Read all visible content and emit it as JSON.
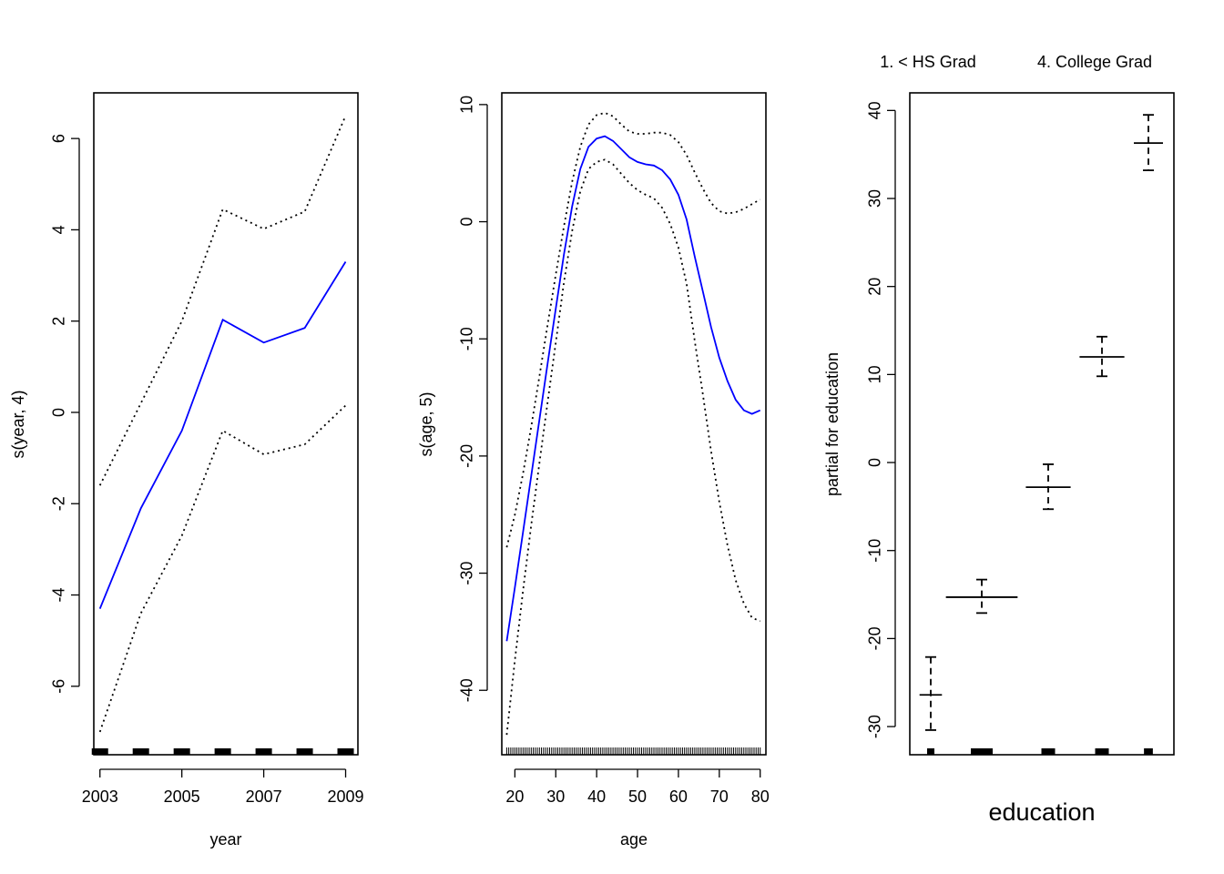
{
  "chart_data": [
    {
      "type": "line",
      "xlabel": "year",
      "ylabel": "s(year, 4)",
      "xlim": [
        2002.85,
        2009.3
      ],
      "ylim": [
        -7.5,
        7.0
      ],
      "xticks": [
        2003,
        2005,
        2007,
        2009
      ],
      "xtick_labels": [
        "2003",
        "2005",
        "2007",
        "2009"
      ],
      "yticks": [
        -6,
        -4,
        -2,
        0,
        2,
        4,
        6
      ],
      "ytick_labels": [
        "-6",
        "-4",
        "-2",
        "0",
        "2",
        "4",
        "6"
      ],
      "line_color": "#0000ff",
      "band_color": "#000000",
      "x": [
        2003,
        2004,
        2005,
        2006,
        2007,
        2008,
        2009
      ],
      "series": [
        {
          "role": "fit",
          "values": [
            -4.3,
            -2.1,
            -0.4,
            2.03,
            1.53,
            1.85,
            3.3
          ]
        },
        {
          "role": "upper",
          "values": [
            -1.6,
            0.2,
            2.0,
            4.45,
            4.02,
            4.4,
            6.5
          ]
        },
        {
          "role": "lower",
          "values": [
            -7.0,
            -4.4,
            -2.7,
            -0.4,
            -0.92,
            -0.7,
            0.15
          ]
        }
      ],
      "rug": [
        2003,
        2004,
        2005,
        2006,
        2007,
        2008,
        2009
      ]
    },
    {
      "type": "line",
      "xlabel": "age",
      "ylabel": "s(age, 5)",
      "xlim": [
        16.8,
        81.4
      ],
      "ylim": [
        -45.5,
        11.0
      ],
      "xticks": [
        20,
        30,
        40,
        50,
        60,
        70,
        80
      ],
      "xtick_labels": [
        "20",
        "30",
        "40",
        "50",
        "60",
        "70",
        "80"
      ],
      "yticks": [
        -40,
        -30,
        -20,
        -10,
        0,
        10
      ],
      "ytick_labels": [
        "-40",
        "-30",
        "-20",
        "-10",
        "0",
        "10"
      ],
      "line_color": "#0000ff",
      "band_color": "#000000",
      "x": [
        18,
        20,
        22,
        24,
        26,
        28,
        30,
        32,
        34,
        36,
        38,
        40,
        42,
        44,
        46,
        48,
        50,
        52,
        54,
        56,
        58,
        60,
        62,
        64,
        66,
        68,
        70,
        72,
        74,
        76,
        78,
        80
      ],
      "series": [
        {
          "role": "fit",
          "values": [
            -35.8,
            -31.2,
            -26.5,
            -21.7,
            -16.9,
            -12.1,
            -7.4,
            -2.8,
            1.3,
            4.5,
            6.4,
            7.1,
            7.3,
            6.9,
            6.2,
            5.5,
            5.1,
            4.9,
            4.8,
            4.4,
            3.6,
            2.3,
            0.2,
            -3.0,
            -6.0,
            -9.0,
            -11.6,
            -13.6,
            -15.2,
            -16.1,
            -16.4,
            -16.1
          ],
          "values_note_suppressed": true
        },
        {
          "role": "upper",
          "values": [
            -27.8,
            -25.0,
            -21.5,
            -17.5,
            -13.2,
            -8.8,
            -4.5,
            -0.4,
            3.4,
            6.4,
            8.3,
            9.1,
            9.3,
            9.0,
            8.3,
            7.7,
            7.5,
            7.5,
            7.6,
            7.6,
            7.4,
            6.8,
            5.7,
            4.2,
            2.8,
            1.6,
            0.9,
            0.7,
            0.8,
            1.1,
            1.5,
            1.9
          ]
        },
        {
          "role": "lower",
          "values": [
            -43.8,
            -37.4,
            -31.5,
            -25.9,
            -20.6,
            -15.4,
            -10.3,
            -5.2,
            -0.8,
            2.6,
            4.5,
            5.1,
            5.3,
            4.9,
            4.1,
            3.3,
            2.7,
            2.3,
            2.0,
            1.2,
            -0.2,
            -2.2,
            -5.3,
            -10.2,
            -14.8,
            -19.6,
            -23.9,
            -27.6,
            -30.6,
            -32.6,
            -33.8,
            -34.1
          ]
        }
      ],
      "rug_from": 18,
      "rug_to": 80
    },
    {
      "type": "errorbar",
      "xlabel": "education",
      "ylabel": "partial for education",
      "ylim": [
        -33.2,
        42.0
      ],
      "yticks": [
        -30,
        -20,
        -10,
        0,
        10,
        20,
        30,
        40
      ],
      "ytick_labels": [
        "-30",
        "-20",
        "-10",
        "0",
        "10",
        "20",
        "30",
        "40"
      ],
      "top_labels": [
        "1. < HS Grad",
        "4. College Grad"
      ],
      "levels": [
        {
          "estimate": -26.4,
          "upper": -22.1,
          "lower": -30.4,
          "width": 1.0,
          "rug": 1.0
        },
        {
          "estimate": -15.3,
          "upper": -13.3,
          "lower": -17.1,
          "width": 3.2,
          "rug": 3.2
        },
        {
          "estimate": -2.8,
          "upper": -0.2,
          "lower": -5.3,
          "width": 2.0,
          "rug": 2.0
        },
        {
          "estimate": 12.0,
          "upper": 14.3,
          "lower": 9.8,
          "width": 2.0,
          "rug": 2.0
        },
        {
          "estimate": 36.3,
          "upper": 39.5,
          "lower": 33.2,
          "width": 1.3,
          "rug": 1.3
        }
      ]
    }
  ]
}
